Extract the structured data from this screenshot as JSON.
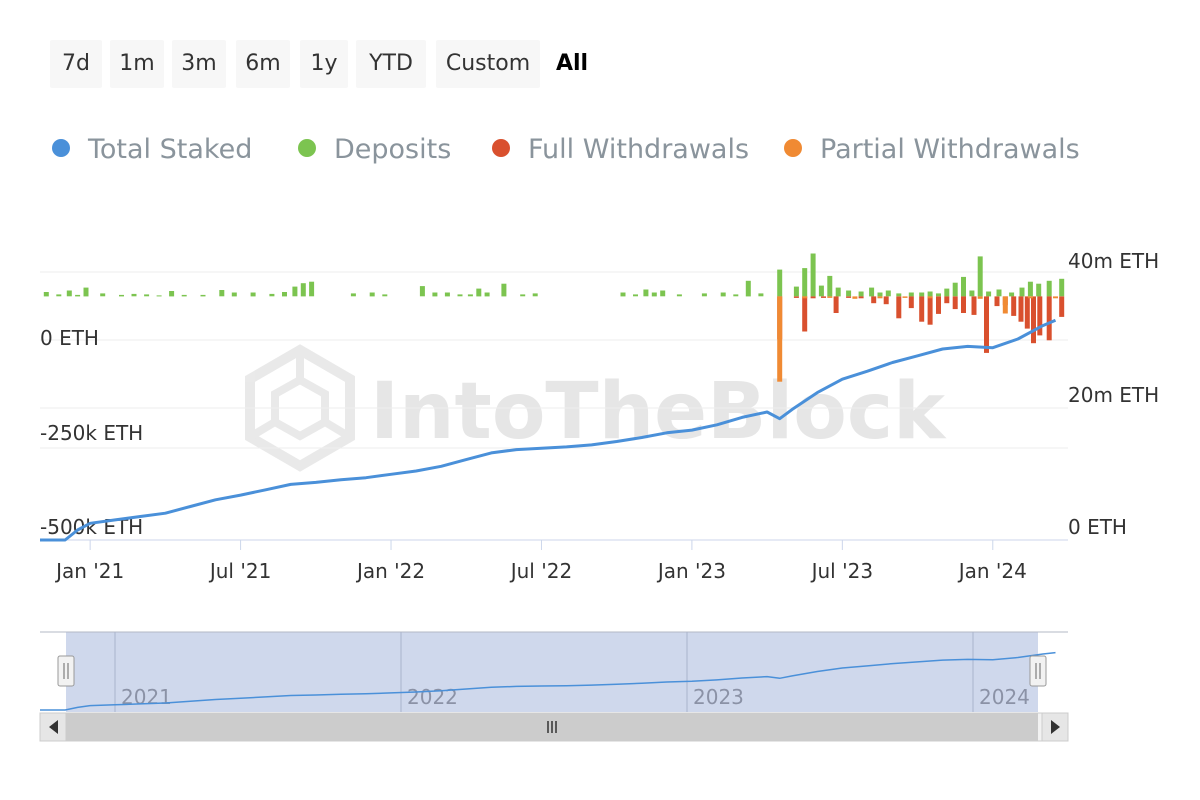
{
  "range_selector": {
    "buttons": [
      "7d",
      "1m",
      "3m",
      "6m",
      "1y",
      "YTD",
      "Custom",
      "All"
    ],
    "active": "All"
  },
  "legend": [
    {
      "name": "Total Staked",
      "color": "#4a90d9"
    },
    {
      "name": "Deposits",
      "color": "#7cc450"
    },
    {
      "name": "Full Withdrawals",
      "color": "#d9502e"
    },
    {
      "name": "Partial Withdrawals",
      "color": "#f08a33"
    }
  ],
  "watermark": "IntoTheBlock",
  "chart_data": {
    "type": "line",
    "title": "",
    "x_start": "2020-11",
    "x_end": "2024-03",
    "x_ticks": [
      "Jan '21",
      "Jul '21",
      "Jan '22",
      "Jul '22",
      "Jan '23",
      "Jul '23",
      "Jan '24"
    ],
    "left_axis": {
      "ticks": [
        "0 ETH",
        "-250k ETH",
        "-500k ETH"
      ],
      "range": [
        -500000,
        50000
      ]
    },
    "right_axis": {
      "ticks": [
        "40m ETH",
        "20m ETH",
        "0 ETH"
      ],
      "range": [
        0,
        40000000
      ]
    },
    "series": [
      {
        "name": "Total Staked",
        "axis": "right",
        "color": "#4a90d9",
        "points": [
          [
            "2020-11",
            0
          ],
          [
            "2020-12",
            0
          ],
          [
            "2020-12",
            1500000
          ],
          [
            "2021-01",
            2500000
          ],
          [
            "2021-02",
            3000000
          ],
          [
            "2021-03",
            3500000
          ],
          [
            "2021-04",
            4000000
          ],
          [
            "2021-05",
            5000000
          ],
          [
            "2021-06",
            6000000
          ],
          [
            "2021-07",
            6700000
          ],
          [
            "2021-08",
            7500000
          ],
          [
            "2021-09",
            8300000
          ],
          [
            "2021-10",
            8600000
          ],
          [
            "2021-11",
            9000000
          ],
          [
            "2021-12",
            9300000
          ],
          [
            "2022-01",
            9800000
          ],
          [
            "2022-02",
            10300000
          ],
          [
            "2022-03",
            11000000
          ],
          [
            "2022-04",
            12000000
          ],
          [
            "2022-05",
            13000000
          ],
          [
            "2022-06",
            13500000
          ],
          [
            "2022-07",
            13700000
          ],
          [
            "2022-08",
            13900000
          ],
          [
            "2022-09",
            14200000
          ],
          [
            "2022-10",
            14700000
          ],
          [
            "2022-11",
            15300000
          ],
          [
            "2022-12",
            16000000
          ],
          [
            "2023-01",
            16400000
          ],
          [
            "2023-02",
            17200000
          ],
          [
            "2023-03",
            18300000
          ],
          [
            "2023-04",
            19100000
          ],
          [
            "2023-04",
            18100000
          ],
          [
            "2023-05",
            19500000
          ],
          [
            "2023-06",
            22000000
          ],
          [
            "2023-07",
            24000000
          ],
          [
            "2023-08",
            25200000
          ],
          [
            "2023-09",
            26500000
          ],
          [
            "2023-10",
            27500000
          ],
          [
            "2023-11",
            28500000
          ],
          [
            "2023-12",
            28900000
          ],
          [
            "2024-01",
            28700000
          ],
          [
            "2024-02",
            30000000
          ],
          [
            "2024-03",
            32000000
          ],
          [
            "2024-03",
            32800000
          ]
        ]
      },
      {
        "name": "Deposits",
        "axis": "left",
        "color": "#7cc450",
        "points": [
          [
            "2020-11",
            9000
          ],
          [
            "2020-11",
            4000
          ],
          [
            "2020-12",
            12000
          ],
          [
            "2020-12",
            3000
          ],
          [
            "2020-12",
            18000
          ],
          [
            "2021-01",
            6000
          ],
          [
            "2021-02",
            3000
          ],
          [
            "2021-02",
            5000
          ],
          [
            "2021-03",
            4000
          ],
          [
            "2021-03",
            2000
          ],
          [
            "2021-04",
            11000
          ],
          [
            "2021-04",
            3000
          ],
          [
            "2021-05",
            3000
          ],
          [
            "2021-06",
            13000
          ],
          [
            "2021-06",
            8000
          ],
          [
            "2021-07",
            8000
          ],
          [
            "2021-08",
            5000
          ],
          [
            "2021-08",
            9000
          ],
          [
            "2021-09",
            20000
          ],
          [
            "2021-09",
            27000
          ],
          [
            "2021-09",
            30000
          ],
          [
            "2021-11",
            6000
          ],
          [
            "2021-12",
            8000
          ],
          [
            "2021-12",
            4000
          ],
          [
            "2022-02",
            21000
          ],
          [
            "2022-02",
            8000
          ],
          [
            "2022-03",
            8000
          ],
          [
            "2022-03",
            4000
          ],
          [
            "2022-04",
            4000
          ],
          [
            "2022-04",
            16000
          ],
          [
            "2022-04",
            8000
          ],
          [
            "2022-05",
            26000
          ],
          [
            "2022-06",
            4000
          ],
          [
            "2022-06",
            6000
          ],
          [
            "2022-10",
            8000
          ],
          [
            "2022-10",
            4000
          ],
          [
            "2022-11",
            14000
          ],
          [
            "2022-11",
            8000
          ],
          [
            "2022-11",
            12000
          ],
          [
            "2022-12",
            4000
          ],
          [
            "2023-01",
            6000
          ],
          [
            "2023-02",
            8000
          ],
          [
            "2023-02",
            4000
          ],
          [
            "2023-03",
            32000
          ],
          [
            "2023-03",
            6000
          ],
          [
            "2023-04",
            55000
          ],
          [
            "2023-05",
            20000
          ],
          [
            "2023-05",
            58000
          ],
          [
            "2023-05",
            88000
          ],
          [
            "2023-06",
            22000
          ],
          [
            "2023-06",
            42000
          ],
          [
            "2023-06",
            18000
          ],
          [
            "2023-07",
            12000
          ],
          [
            "2023-07",
            10000
          ],
          [
            "2023-08",
            18000
          ],
          [
            "2023-08",
            8000
          ],
          [
            "2023-08",
            12000
          ],
          [
            "2023-09",
            6000
          ],
          [
            "2023-09",
            8000
          ],
          [
            "2023-10",
            8000
          ],
          [
            "2023-10",
            10000
          ],
          [
            "2023-10",
            6000
          ],
          [
            "2023-11",
            16000
          ],
          [
            "2023-11",
            28000
          ],
          [
            "2023-11",
            40000
          ],
          [
            "2023-12",
            12000
          ],
          [
            "2023-12",
            82000
          ],
          [
            "2023-12",
            10000
          ],
          [
            "2024-01",
            14000
          ],
          [
            "2024-01",
            8000
          ],
          [
            "2024-02",
            18000
          ],
          [
            "2024-02",
            30000
          ],
          [
            "2024-02",
            26000
          ],
          [
            "2024-03",
            32000
          ],
          [
            "2024-03",
            36000
          ]
        ]
      },
      {
        "name": "Full Withdrawals",
        "axis": "left",
        "color": "#d9502e",
        "points": [
          [
            "2023-04",
            -88000
          ],
          [
            "2023-05",
            -3000
          ],
          [
            "2023-05",
            -72000
          ],
          [
            "2023-05",
            -4000
          ],
          [
            "2023-06",
            -3000
          ],
          [
            "2023-06",
            -34000
          ],
          [
            "2023-07",
            -3000
          ],
          [
            "2023-07",
            -4000
          ],
          [
            "2023-08",
            -14000
          ],
          [
            "2023-08",
            -16000
          ],
          [
            "2023-09",
            -45000
          ],
          [
            "2023-09",
            -24000
          ],
          [
            "2023-10",
            -52000
          ],
          [
            "2023-10",
            -58000
          ],
          [
            "2023-10",
            -36000
          ],
          [
            "2023-11",
            -14000
          ],
          [
            "2023-11",
            -26000
          ],
          [
            "2023-11",
            -34000
          ],
          [
            "2023-12",
            -38000
          ],
          [
            "2023-12",
            -116000
          ],
          [
            "2024-01",
            -20000
          ],
          [
            "2024-01",
            -18000
          ],
          [
            "2024-01",
            -40000
          ],
          [
            "2024-02",
            -52000
          ],
          [
            "2024-02",
            -66000
          ],
          [
            "2024-02",
            -96000
          ],
          [
            "2024-02",
            -80000
          ],
          [
            "2024-03",
            -90000
          ],
          [
            "2024-03",
            -42000
          ]
        ]
      },
      {
        "name": "Partial Withdrawals",
        "axis": "left",
        "color": "#f08a33",
        "points": [
          [
            "2023-04",
            -175000
          ],
          [
            "2023-05",
            -4000
          ],
          [
            "2023-06",
            -3000
          ],
          [
            "2023-07",
            -5000
          ],
          [
            "2023-08",
            -4000
          ],
          [
            "2023-09",
            -3000
          ],
          [
            "2023-10",
            -4000
          ],
          [
            "2023-12",
            -5000
          ],
          [
            "2024-01",
            -35000
          ],
          [
            "2024-02",
            -4000
          ],
          [
            "2024-03",
            -4000
          ]
        ]
      }
    ],
    "navigator": {
      "labels": [
        "2021",
        "2022",
        "2023",
        "2024"
      ]
    },
    "grid": true,
    "legend_position": "top"
  }
}
